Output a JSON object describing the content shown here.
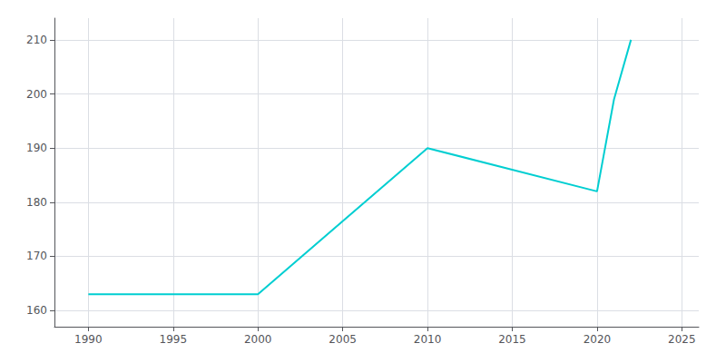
{
  "chart_data": {
    "type": "line",
    "x": [
      1990,
      2000,
      2010,
      2020,
      2021,
      2022
    ],
    "values": [
      163,
      163,
      190,
      182,
      199,
      210
    ],
    "color": "#00CED1",
    "xlim": [
      1988,
      2026
    ],
    "ylim": [
      157,
      214
    ],
    "xticks": [
      1990,
      1995,
      2000,
      2005,
      2010,
      2015,
      2020,
      2025
    ],
    "yticks": [
      160,
      170,
      180,
      190,
      200,
      210
    ],
    "grid": true
  }
}
